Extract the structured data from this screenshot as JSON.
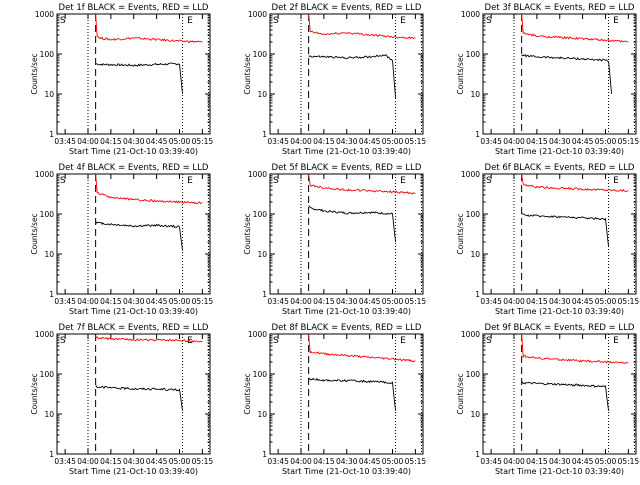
{
  "start_time_label": "Start Time (21-Oct-10 03:39:40)",
  "ylabel": "Counts/sec",
  "colors": {
    "events": "#000000",
    "lld": "#ff0000",
    "axes": "#000000"
  },
  "chart_data": [
    {
      "type": "line",
      "detector": "1f",
      "title": "Det 1f BLACK = Events, RED = LLD",
      "xlabel": "Start Time (21-Oct-10 03:39:40)",
      "ylabel": "Counts/sec",
      "x_ticks": [
        "03:45",
        "04:00",
        "04:15",
        "04:30",
        "04:45",
        "05:00",
        "05:15"
      ],
      "y_ticks": [
        "1",
        "10",
        "100",
        "1000"
      ],
      "yscale": "log",
      "ylim": [
        1,
        1000
      ],
      "xlim": [
        "03:39:40",
        "05:20"
      ],
      "markers": [
        "S",
        "E"
      ],
      "vlines": {
        "dotted": [
          "04:00",
          "05:02",
          "05:19"
        ],
        "dashed": [
          "04:05"
        ]
      },
      "series": [
        {
          "name": "BLACK = Events",
          "x": [
            "04:05",
            "04:06",
            "04:08",
            "04:15",
            "04:30",
            "04:45",
            "05:00",
            "05:02"
          ],
          "values": [
            58,
            56,
            55,
            54,
            52,
            55,
            57,
            10
          ]
        },
        {
          "name": "RED = LLD",
          "x": [
            "04:05",
            "04:06",
            "04:08",
            "04:15",
            "04:30",
            "04:45",
            "05:00",
            "05:15"
          ],
          "values": [
            1000,
            280,
            250,
            230,
            250,
            230,
            210,
            200
          ]
        }
      ]
    },
    {
      "type": "line",
      "detector": "2f",
      "title": "Det 2f BLACK = Events, RED = LLD",
      "xlabel": "Start Time (21-Oct-10 03:39:40)",
      "ylabel": "Counts/sec",
      "x_ticks": [
        "03:45",
        "04:00",
        "04:15",
        "04:30",
        "04:45",
        "05:00",
        "05:15"
      ],
      "y_ticks": [
        "1",
        "10",
        "100",
        "1000"
      ],
      "yscale": "log",
      "ylim": [
        1,
        1000
      ],
      "xlim": [
        "03:39:40",
        "05:20"
      ],
      "markers": [
        "S",
        "E"
      ],
      "vlines": {
        "dotted": [
          "04:00",
          "05:02",
          "05:19"
        ],
        "dashed": [
          "04:05"
        ]
      },
      "series": [
        {
          "name": "BLACK = Events",
          "x": [
            "04:05",
            "04:06",
            "04:15",
            "04:30",
            "04:45",
            "04:55",
            "05:00",
            "05:02"
          ],
          "values": [
            90,
            88,
            85,
            80,
            85,
            95,
            70,
            8
          ]
        },
        {
          "name": "RED = LLD",
          "x": [
            "04:05",
            "04:06",
            "04:15",
            "04:30",
            "04:45",
            "05:00",
            "05:15"
          ],
          "values": [
            1000,
            360,
            310,
            340,
            300,
            270,
            250
          ]
        }
      ]
    },
    {
      "type": "line",
      "detector": "3f",
      "title": "Det 3f BLACK = Events, RED = LLD",
      "xlabel": "Start Time (21-Oct-10 03:39:40)",
      "ylabel": "Counts/sec",
      "x_ticks": [
        "03:45",
        "04:00",
        "04:15",
        "04:30",
        "04:45",
        "05:00",
        "05:15"
      ],
      "y_ticks": [
        "1",
        "10",
        "100",
        "1000"
      ],
      "yscale": "log",
      "ylim": [
        1,
        1000
      ],
      "xlim": [
        "03:39:40",
        "05:20"
      ],
      "markers": [
        "S",
        "E"
      ],
      "vlines": {
        "dotted": [
          "04:00",
          "05:02",
          "05:19"
        ],
        "dashed": [
          "04:05"
        ]
      },
      "series": [
        {
          "name": "BLACK = Events",
          "x": [
            "04:05",
            "04:06",
            "04:15",
            "04:30",
            "04:45",
            "05:00",
            "05:02",
            "05:04"
          ],
          "values": [
            95,
            92,
            85,
            80,
            75,
            70,
            65,
            10
          ]
        },
        {
          "name": "RED = LLD",
          "x": [
            "04:05",
            "04:06",
            "04:15",
            "04:30",
            "04:45",
            "05:00",
            "05:15"
          ],
          "values": [
            1000,
            330,
            280,
            260,
            240,
            220,
            200
          ]
        }
      ]
    },
    {
      "type": "line",
      "detector": "4f",
      "title": "Det 4f BLACK = Events, RED = LLD",
      "xlabel": "Start Time (21-Oct-10 03:39:40)",
      "ylabel": "Counts/sec",
      "x_ticks": [
        "03:45",
        "04:00",
        "04:15",
        "04:30",
        "04:45",
        "05:00",
        "05:15"
      ],
      "y_ticks": [
        "1",
        "10",
        "100",
        "1000"
      ],
      "yscale": "log",
      "ylim": [
        1,
        1000
      ],
      "xlim": [
        "03:39:40",
        "05:20"
      ],
      "markers": [
        "S",
        "E"
      ],
      "vlines": {
        "dotted": [
          "04:00",
          "05:02",
          "05:19"
        ],
        "dashed": [
          "04:05"
        ]
      },
      "series": [
        {
          "name": "BLACK = Events",
          "x": [
            "04:05",
            "04:06",
            "04:15",
            "04:30",
            "04:45",
            "05:00",
            "05:02"
          ],
          "values": [
            65,
            60,
            55,
            50,
            52,
            48,
            12
          ]
        },
        {
          "name": "RED = LLD",
          "x": [
            "04:05",
            "04:06",
            "04:15",
            "04:30",
            "04:45",
            "05:00",
            "05:15"
          ],
          "values": [
            1000,
            330,
            260,
            230,
            210,
            200,
            190
          ]
        }
      ]
    },
    {
      "type": "line",
      "detector": "5f",
      "title": "Det 5f BLACK = Events, RED = LLD",
      "xlabel": "Start Time (21-Oct-10 03:39:40)",
      "ylabel": "Counts/sec",
      "x_ticks": [
        "03:45",
        "04:00",
        "04:15",
        "04:30",
        "04:45",
        "05:00",
        "05:15"
      ],
      "y_ticks": [
        "1",
        "10",
        "100",
        "1000"
      ],
      "yscale": "log",
      "ylim": [
        1,
        1000
      ],
      "xlim": [
        "03:39:40",
        "05:20"
      ],
      "markers": [
        "S",
        "E"
      ],
      "vlines": {
        "dotted": [
          "04:00",
          "05:02",
          "05:19"
        ],
        "dashed": [
          "04:05"
        ]
      },
      "series": [
        {
          "name": "BLACK = Events",
          "x": [
            "04:05",
            "04:06",
            "04:15",
            "04:30",
            "04:45",
            "05:00",
            "05:02"
          ],
          "values": [
            160,
            140,
            120,
            105,
            110,
            100,
            20
          ]
        },
        {
          "name": "RED = LLD",
          "x": [
            "04:05",
            "04:06",
            "04:15",
            "04:30",
            "04:45",
            "05:00",
            "05:15"
          ],
          "values": [
            1000,
            520,
            450,
            400,
            380,
            360,
            330
          ]
        }
      ]
    },
    {
      "type": "line",
      "detector": "6f",
      "title": "Det 6f BLACK = Events, RED = LLD",
      "xlabel": "Start Time (21-Oct-10 03:39:40)",
      "ylabel": "Counts/sec",
      "x_ticks": [
        "03:45",
        "04:00",
        "04:15",
        "04:30",
        "04:45",
        "05:00",
        "05:15"
      ],
      "y_ticks": [
        "1",
        "10",
        "100",
        "1000"
      ],
      "yscale": "log",
      "ylim": [
        1,
        1000
      ],
      "xlim": [
        "03:39:40",
        "05:20"
      ],
      "markers": [
        "S",
        "E"
      ],
      "vlines": {
        "dotted": [
          "04:00",
          "05:02",
          "05:19"
        ],
        "dashed": [
          "04:05"
        ]
      },
      "series": [
        {
          "name": "BLACK = Events",
          "x": [
            "04:05",
            "04:06",
            "04:15",
            "04:30",
            "04:45",
            "05:00",
            "05:02"
          ],
          "values": [
            100,
            95,
            90,
            85,
            80,
            75,
            15
          ]
        },
        {
          "name": "RED = LLD",
          "x": [
            "04:05",
            "04:06",
            "04:15",
            "04:30",
            "04:45",
            "05:00",
            "05:15"
          ],
          "values": [
            1000,
            550,
            470,
            440,
            420,
            400,
            380
          ]
        }
      ]
    },
    {
      "type": "line",
      "detector": "7f",
      "title": "Det 7f BLACK = Events, RED = LLD",
      "xlabel": "Start Time (21-Oct-10 03:39:40)",
      "ylabel": "Counts/sec",
      "x_ticks": [
        "03:45",
        "04:00",
        "04:15",
        "04:30",
        "04:45",
        "05:00",
        "05:15"
      ],
      "y_ticks": [
        "1",
        "10",
        "100",
        "1000"
      ],
      "yscale": "log",
      "ylim": [
        1,
        1000
      ],
      "xlim": [
        "03:39:40",
        "05:20"
      ],
      "markers": [
        "S",
        "E"
      ],
      "vlines": {
        "dotted": [
          "04:00",
          "05:02",
          "05:19"
        ],
        "dashed": [
          "04:05"
        ]
      },
      "series": [
        {
          "name": "BLACK = Events",
          "x": [
            "04:05",
            "04:06",
            "04:15",
            "04:30",
            "04:45",
            "05:00",
            "05:02"
          ],
          "values": [
            50,
            48,
            45,
            43,
            42,
            40,
            12
          ]
        },
        {
          "name": "RED = LLD",
          "x": [
            "04:05",
            "04:06",
            "04:15",
            "04:30",
            "04:45",
            "05:00",
            "05:15"
          ],
          "values": [
            900,
            800,
            750,
            720,
            700,
            690,
            650
          ]
        }
      ]
    },
    {
      "type": "line",
      "detector": "8f",
      "title": "Det 8f BLACK = Events, RED = LLD",
      "xlabel": "Start Time (21-Oct-10 03:39:40)",
      "ylabel": "Counts/sec",
      "x_ticks": [
        "03:45",
        "04:00",
        "04:15",
        "04:30",
        "04:45",
        "05:00",
        "05:15"
      ],
      "y_ticks": [
        "1",
        "10",
        "100",
        "1000"
      ],
      "yscale": "log",
      "ylim": [
        1,
        1000
      ],
      "xlim": [
        "03:39:40",
        "05:20"
      ],
      "markers": [
        "S",
        "E"
      ],
      "vlines": {
        "dotted": [
          "04:00",
          "05:02",
          "05:19"
        ],
        "dashed": [
          "04:05"
        ]
      },
      "series": [
        {
          "name": "BLACK = Events",
          "x": [
            "04:05",
            "04:06",
            "04:15",
            "04:30",
            "04:45",
            "05:00",
            "05:02"
          ],
          "values": [
            80,
            75,
            70,
            68,
            65,
            60,
            12
          ]
        },
        {
          "name": "RED = LLD",
          "x": [
            "04:05",
            "04:06",
            "04:15",
            "04:30",
            "04:45",
            "05:00",
            "05:15"
          ],
          "values": [
            1000,
            360,
            320,
            290,
            260,
            240,
            210
          ]
        }
      ]
    },
    {
      "type": "line",
      "detector": "9f",
      "title": "Det 9f BLACK = Events, RED = LLD",
      "xlabel": "Start Time (21-Oct-10 03:39:40)",
      "ylabel": "Counts/sec",
      "x_ticks": [
        "03:45",
        "04:00",
        "04:15",
        "04:30",
        "04:45",
        "05:00",
        "05:15"
      ],
      "y_ticks": [
        "1",
        "10",
        "100",
        "1000"
      ],
      "yscale": "log",
      "ylim": [
        1,
        1000
      ],
      "xlim": [
        "03:39:40",
        "05:20"
      ],
      "markers": [
        "S",
        "E"
      ],
      "vlines": {
        "dotted": [
          "04:00",
          "05:02",
          "05:19"
        ],
        "dashed": [
          "04:05"
        ]
      },
      "series": [
        {
          "name": "BLACK = Events",
          "x": [
            "04:05",
            "04:06",
            "04:15",
            "04:30",
            "04:45",
            "05:00",
            "05:02"
          ],
          "values": [
            65,
            60,
            58,
            55,
            52,
            48,
            12
          ]
        },
        {
          "name": "RED = LLD",
          "x": [
            "04:05",
            "04:06",
            "04:15",
            "04:30",
            "04:45",
            "05:00",
            "05:15"
          ],
          "values": [
            1000,
            280,
            250,
            230,
            210,
            200,
            190
          ]
        }
      ]
    }
  ]
}
